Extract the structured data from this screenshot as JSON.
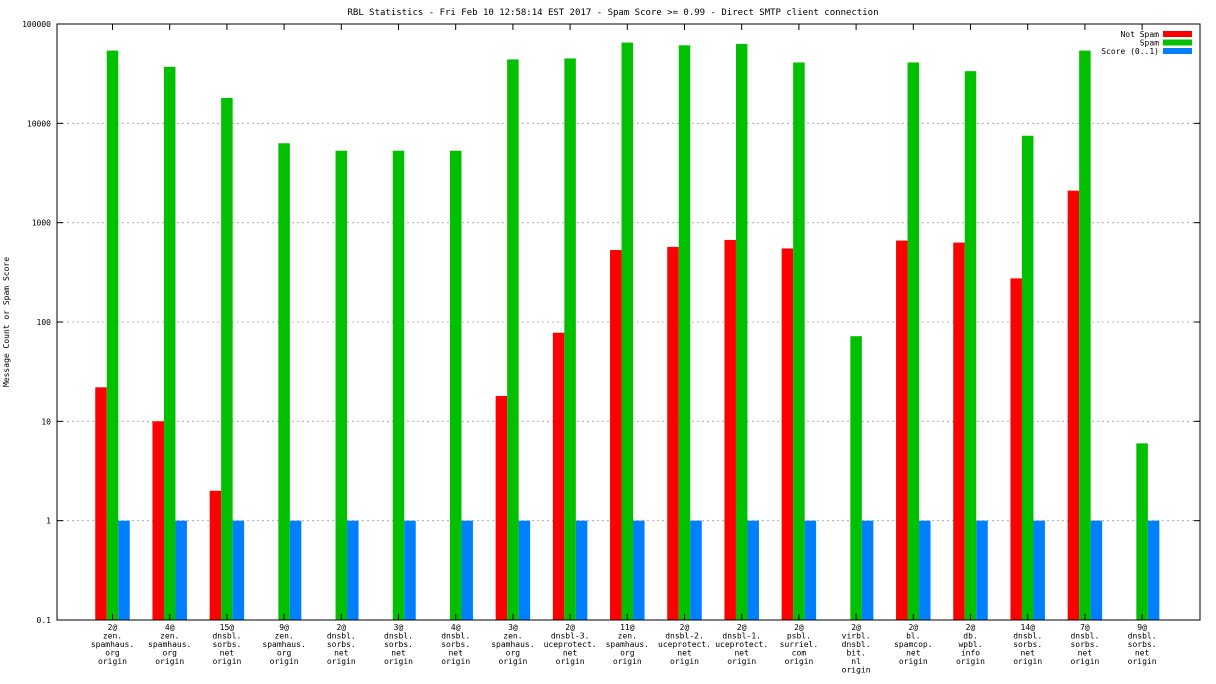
{
  "chart_data": {
    "type": "bar",
    "title": "RBL Statistics - Fri Feb 10 12:58:14 EST 2017 - Spam Score >= 0.99 - Direct SMTP client connection",
    "xlabel": "",
    "ylabel": "Message Count or Spam Score",
    "y_scale": "log",
    "ylim": [
      0.1,
      100000
    ],
    "y_ticks": [
      "0.1",
      "1",
      "10",
      "100",
      "1000",
      "10000",
      "100000"
    ],
    "grid": true,
    "legend_position": "top-right",
    "categories": [
      [
        "2@",
        "zen.",
        "spamhaus.",
        "org",
        "origin"
      ],
      [
        "4@",
        "zen.",
        "spamhaus.",
        "org",
        "origin"
      ],
      [
        "15@",
        "dnsbl.",
        "sorbs.",
        "net",
        "origin"
      ],
      [
        "9@",
        "zen.",
        "spamhaus.",
        "org",
        "origin"
      ],
      [
        "2@",
        "dnsbl.",
        "sorbs.",
        "net",
        "origin"
      ],
      [
        "3@",
        "dnsbl.",
        "sorbs.",
        "net",
        "origin"
      ],
      [
        "4@",
        "dnsbl.",
        "sorbs.",
        "net",
        "origin"
      ],
      [
        "3@",
        "zen.",
        "spamhaus.",
        "org",
        "origin"
      ],
      [
        "2@",
        "dnsbl-3.",
        "uceprotect.",
        "net",
        "origin"
      ],
      [
        "11@",
        "zen.",
        "spamhaus.",
        "org",
        "origin"
      ],
      [
        "2@",
        "dnsbl-2.",
        "uceprotect.",
        "net",
        "origin"
      ],
      [
        "2@",
        "dnsbl-1.",
        "uceprotect.",
        "net",
        "origin"
      ],
      [
        "2@",
        "psbl.",
        "surriel.",
        "com",
        "origin"
      ],
      [
        "2@",
        "virbl.",
        "dnsbl.",
        "bit.",
        "nl",
        "origin"
      ],
      [
        "2@",
        "bl.",
        "spamcop.",
        "net",
        "origin"
      ],
      [
        "2@",
        "db.",
        "wpbl.",
        "info",
        "origin"
      ],
      [
        "14@",
        "dnsbl.",
        "sorbs.",
        "net",
        "origin"
      ],
      [
        "7@",
        "dnsbl.",
        "sorbs.",
        "net",
        "origin"
      ],
      [
        "9@",
        "dnsbl.",
        "sorbs.",
        "net",
        "origin"
      ]
    ],
    "series": [
      {
        "name": "Not Spam",
        "color": "#ff0000",
        "values": [
          22,
          10,
          2,
          null,
          null,
          null,
          null,
          18,
          78,
          530,
          570,
          670,
          550,
          null,
          660,
          630,
          275,
          2100,
          null
        ]
      },
      {
        "name": "Spam",
        "color": "#00c000",
        "values": [
          54000,
          37000,
          18000,
          6300,
          5300,
          5300,
          5300,
          44000,
          45000,
          65000,
          61000,
          63000,
          41000,
          72,
          41000,
          33500,
          7500,
          54000,
          6
        ]
      },
      {
        "name": "Score (0..1)",
        "color": "#0080ff",
        "values": [
          1,
          1,
          1,
          1,
          1,
          1,
          1,
          1,
          1,
          1,
          1,
          1,
          1,
          1,
          1,
          1,
          1,
          1,
          1
        ]
      }
    ]
  }
}
